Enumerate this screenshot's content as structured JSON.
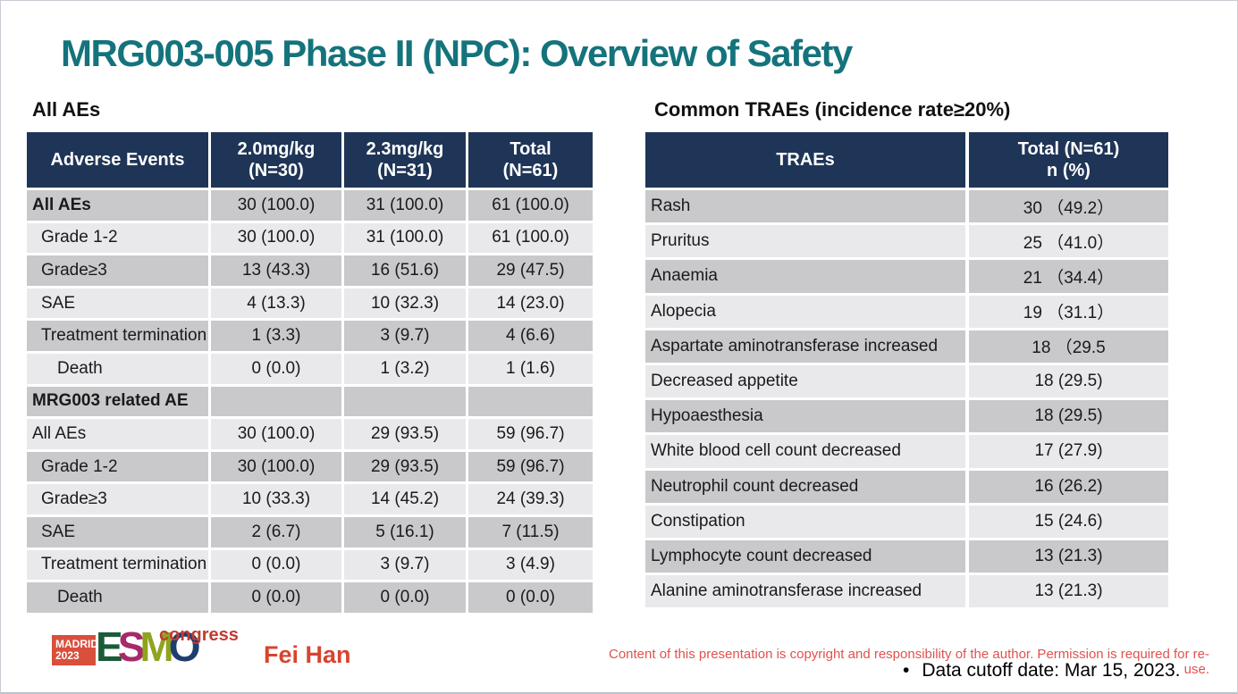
{
  "colors": {
    "title_teal": "#14737C",
    "table_header_navy": "#1F3557",
    "row_dark": "#C9C9CC",
    "row_light": "#E9E9EB",
    "copyright_red": "#E0524E",
    "author_red": "#D8432F",
    "congress_red": "#C23B32",
    "madrid_box_red": "#D94F3C",
    "esmo_e_green": "#1C5B38",
    "esmo_s_magenta": "#A62A6B",
    "esmo_m_olive": "#8FA31F",
    "esmo_o_navy": "#1E3E6F",
    "text_black": "#1A1A1A"
  },
  "title": "MRG003-005 Phase II (NPC): Overview of Safety",
  "left_section": {
    "label": "All AEs",
    "table": {
      "headers": [
        {
          "line1": "Adverse Events",
          "line2": ""
        },
        {
          "line1": "2.0mg/kg",
          "line2": "(N=30)"
        },
        {
          "line1": "2.3mg/kg",
          "line2": "(N=31)"
        },
        {
          "line1": "Total",
          "line2": "(N=61)"
        }
      ],
      "rows": [
        {
          "label": "All AEs",
          "bold": true,
          "indent": 0,
          "values": [
            "30 (100.0)",
            "31 (100.0)",
            "61 (100.0)"
          ]
        },
        {
          "label": "Grade 1-2",
          "bold": false,
          "indent": 1,
          "values": [
            "30 (100.0)",
            "31 (100.0)",
            "61 (100.0)"
          ]
        },
        {
          "label": "Grade≥3",
          "bold": false,
          "indent": 1,
          "values": [
            "13 (43.3)",
            "16 (51.6)",
            "29 (47.5)"
          ]
        },
        {
          "label": "SAE",
          "bold": false,
          "indent": 1,
          "values": [
            "4 (13.3)",
            "10 (32.3)",
            "14 (23.0)"
          ]
        },
        {
          "label": "Treatment termination",
          "bold": false,
          "indent": 1,
          "values": [
            "1 (3.3)",
            "3 (9.7)",
            "4 (6.6)"
          ]
        },
        {
          "label": "Death",
          "bold": false,
          "indent": 2,
          "values": [
            "0 (0.0)",
            "1 (3.2)",
            "1 (1.6)"
          ]
        },
        {
          "label": "MRG003 related AE",
          "bold": true,
          "indent": 0,
          "values": [
            "",
            "",
            ""
          ]
        },
        {
          "label": "All AEs",
          "bold": false,
          "indent": 0,
          "values": [
            "30 (100.0)",
            "29 (93.5)",
            "59 (96.7)"
          ]
        },
        {
          "label": "Grade 1-2",
          "bold": false,
          "indent": 1,
          "values": [
            "30 (100.0)",
            "29 (93.5)",
            "59 (96.7)"
          ]
        },
        {
          "label": "Grade≥3",
          "bold": false,
          "indent": 1,
          "values": [
            "10 (33.3)",
            "14 (45.2)",
            "24 (39.3)"
          ]
        },
        {
          "label": "SAE",
          "bold": false,
          "indent": 1,
          "values": [
            "2 (6.7)",
            "5 (16.1)",
            "7 (11.5)"
          ]
        },
        {
          "label": "Treatment termination",
          "bold": false,
          "indent": 1,
          "values": [
            "0 (0.0)",
            "3 (9.7)",
            "3 (4.9)"
          ]
        },
        {
          "label": "Death",
          "bold": false,
          "indent": 2,
          "values": [
            "0 (0.0)",
            "0 (0.0)",
            "0 (0.0)"
          ]
        }
      ]
    }
  },
  "right_section": {
    "label": "Common TRAEs (incidence rate≥20%)",
    "table": {
      "headers": [
        {
          "line1": "TRAEs",
          "line2": ""
        },
        {
          "line1": "Total (N=61)",
          "line2": "n (%)"
        }
      ],
      "rows": [
        {
          "label": "Rash",
          "value": "30 （49.2）"
        },
        {
          "label": "Pruritus",
          "value": "25 （41.0）"
        },
        {
          "label": "Anaemia",
          "value": "21 （34.4）"
        },
        {
          "label": "Alopecia",
          "value": "19 （31.1）"
        },
        {
          "label": "Aspartate aminotransferase increased",
          "value": "18 （29.5"
        },
        {
          "label": "Decreased appetite",
          "value": "18 (29.5)"
        },
        {
          "label": "Hypoaesthesia",
          "value": "18 (29.5)"
        },
        {
          "label": "White blood cell count decreased",
          "value": "17 (27.9)"
        },
        {
          "label": "Neutrophil count decreased",
          "value": "16 (26.2)"
        },
        {
          "label": "Constipation",
          "value": "15 (24.6)"
        },
        {
          "label": "Lymphocyte count decreased",
          "value": "13 (21.3)"
        },
        {
          "label": "Alanine aminotransferase increased",
          "value": "13 (21.3)"
        }
      ]
    }
  },
  "footer": {
    "logo": {
      "city": "MADRID",
      "year": "2023",
      "letters": [
        "E",
        "S",
        "M",
        "O"
      ],
      "congress": "congress"
    },
    "author": "Fei Han",
    "copyright": "Content of this presentation is copyright and responsibility of the author. Permission is required for re-use.",
    "bullet": "•",
    "data_cutoff": "Data cutoff date: Mar 15, 2023."
  }
}
